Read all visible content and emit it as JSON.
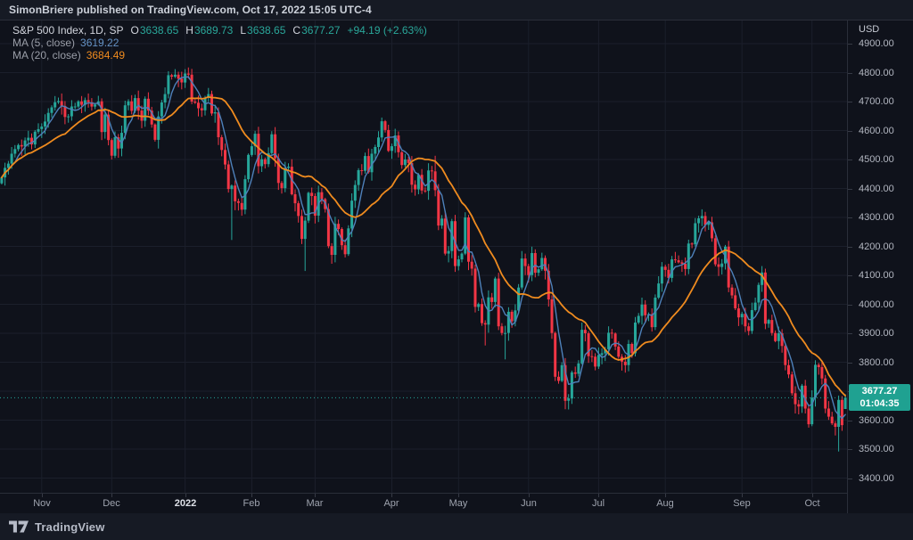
{
  "header": {
    "publish_line": "SimonBriere published on TradingView.com, Oct 17, 2022 15:05 UTC-4"
  },
  "legend": {
    "title": "S&P 500 Index, 1D, SP",
    "ohlc": [
      {
        "k": "O",
        "v": "3638.65"
      },
      {
        "k": "H",
        "v": "3689.73"
      },
      {
        "k": "L",
        "v": "3638.65"
      },
      {
        "k": "C",
        "v": "3677.27"
      }
    ],
    "change": "+94.19 (+2.63%)",
    "ma5_label": "MA (5, close)",
    "ma5_value": "3619.22",
    "ma20_label": "MA (20, close)",
    "ma20_value": "3684.49"
  },
  "price_scale": {
    "currency": "USD",
    "max": 4900,
    "min": 3400,
    "step": 100,
    "last_price": "3677.27",
    "last_price_value": 3677.27,
    "countdown": "01:04:35"
  },
  "time_scale": {
    "labels": [
      {
        "text": "Nov",
        "index": 12
      },
      {
        "text": "Dec",
        "index": 33
      },
      {
        "text": "2022",
        "index": 55,
        "emphasis": true
      },
      {
        "text": "Feb",
        "index": 75
      },
      {
        "text": "Mar",
        "index": 94
      },
      {
        "text": "Apr",
        "index": 117
      },
      {
        "text": "May",
        "index": 137
      },
      {
        "text": "Jun",
        "index": 158
      },
      {
        "text": "Jul",
        "index": 179
      },
      {
        "text": "Aug",
        "index": 199
      },
      {
        "text": "Sep",
        "index": 222
      },
      {
        "text": "Oct",
        "index": 243
      }
    ]
  },
  "footer": {
    "brand": "TradingView"
  },
  "colors": {
    "up": "#26a69a",
    "down": "#f23645",
    "ma5": "#4e81ba",
    "ma20": "#ef8b1f",
    "last_price": "#26a69a",
    "grid": "#1b1f2b",
    "axis_text": "#b2b6c0"
  },
  "chart_data": {
    "type": "candlestick",
    "title": "S&P 500 Index, 1D, SP",
    "interval": "1D",
    "ylabel": "USD",
    "ylim": [
      3400,
      4900
    ],
    "grid": true,
    "closes": [
      4438,
      4471,
      4486,
      4520,
      4536,
      4550,
      4545,
      4566,
      4575,
      4552,
      4596,
      4605,
      4614,
      4631,
      4661,
      4680,
      4698,
      4702,
      4685,
      4647,
      4649,
      4683,
      4683,
      4701,
      4689,
      4705,
      4698,
      4683,
      4690,
      4701,
      4595,
      4655,
      4567,
      4513,
      4577,
      4538,
      4592,
      4687,
      4701,
      4668,
      4712,
      4669,
      4634,
      4710,
      4669,
      4621,
      4568,
      4649,
      4697,
      4726,
      4791,
      4786,
      4793,
      4779,
      4766,
      4797,
      4793,
      4700,
      4696,
      4677,
      4670,
      4713,
      4726,
      4659,
      4663,
      4577,
      4533,
      4483,
      4398,
      4410,
      4356,
      4350,
      4327,
      4432,
      4516,
      4546,
      4589,
      4477,
      4501,
      4484,
      4522,
      4587,
      4504,
      4419,
      4401,
      4471,
      4475,
      4380,
      4349,
      4305,
      4226,
      4289,
      4385,
      4374,
      4306,
      4387,
      4363,
      4329,
      4201,
      4171,
      4278,
      4260,
      4204,
      4173,
      4262,
      4358,
      4412,
      4463,
      4461,
      4512,
      4456,
      4520,
      4543,
      4576,
      4632,
      4602,
      4530,
      4546,
      4583,
      4525,
      4481,
      4500,
      4488,
      4413,
      4397,
      4447,
      4393,
      4392,
      4462,
      4459,
      4394,
      4272,
      4296,
      4175,
      4184,
      4287,
      4132,
      4155,
      4175,
      4300,
      4147,
      4123,
      3991,
      4001,
      3935,
      3930,
      4024,
      4008,
      4089,
      3924,
      3901,
      3901,
      3974,
      3941,
      3979,
      4058,
      4158,
      4132,
      4101,
      4177,
      4109,
      4121,
      4160,
      4116,
      4017,
      3901,
      3750,
      3736,
      3790,
      3667,
      3675,
      3765,
      3760,
      3796,
      3912,
      3900,
      3821,
      3819,
      3785,
      3825,
      3831,
      3845,
      3902,
      3899,
      3854,
      3819,
      3802,
      3790,
      3863,
      3831,
      3937,
      3960,
      3999,
      3962,
      3966,
      3921,
      4023,
      4072,
      4130,
      4119,
      4091,
      4155,
      4152,
      4145,
      4140,
      4122,
      4210,
      4207,
      4280,
      4297,
      4305,
      4274,
      4283,
      4228,
      4138,
      4129,
      4141,
      4199,
      4058,
      4031,
      3986,
      3955,
      3967,
      3924,
      3908,
      3980,
      4006,
      4067,
      4110,
      3933,
      3946,
      3901,
      3873,
      3900,
      3856,
      3790,
      3758,
      3693,
      3655,
      3647,
      3719,
      3640,
      3586,
      3678,
      3791,
      3783,
      3744,
      3640,
      3612,
      3589,
      3577,
      3670,
      3583,
      3677.27
    ],
    "overrides": {
      "56": [
        null,
        4818,
        null,
        null
      ],
      "69": [
        null,
        null,
        4222,
        null
      ],
      "91": [
        null,
        null,
        4115,
        null
      ],
      "130": [
        null,
        4513,
        null,
        null
      ],
      "145": [
        null,
        null,
        3858,
        null
      ],
      "151": [
        null,
        null,
        3810,
        null
      ],
      "170": [
        null,
        null,
        3637,
        null
      ],
      "251": [
        null,
        3685,
        3491.58,
        null
      ],
      "253": [
        3638.65,
        3689.73,
        3638.65,
        3677.27
      ]
    },
    "series": [
      {
        "name": "MA (5, close)",
        "window": 5,
        "last": 3619.22
      },
      {
        "name": "MA (20, close)",
        "window": 20,
        "last": 3684.49
      }
    ]
  }
}
